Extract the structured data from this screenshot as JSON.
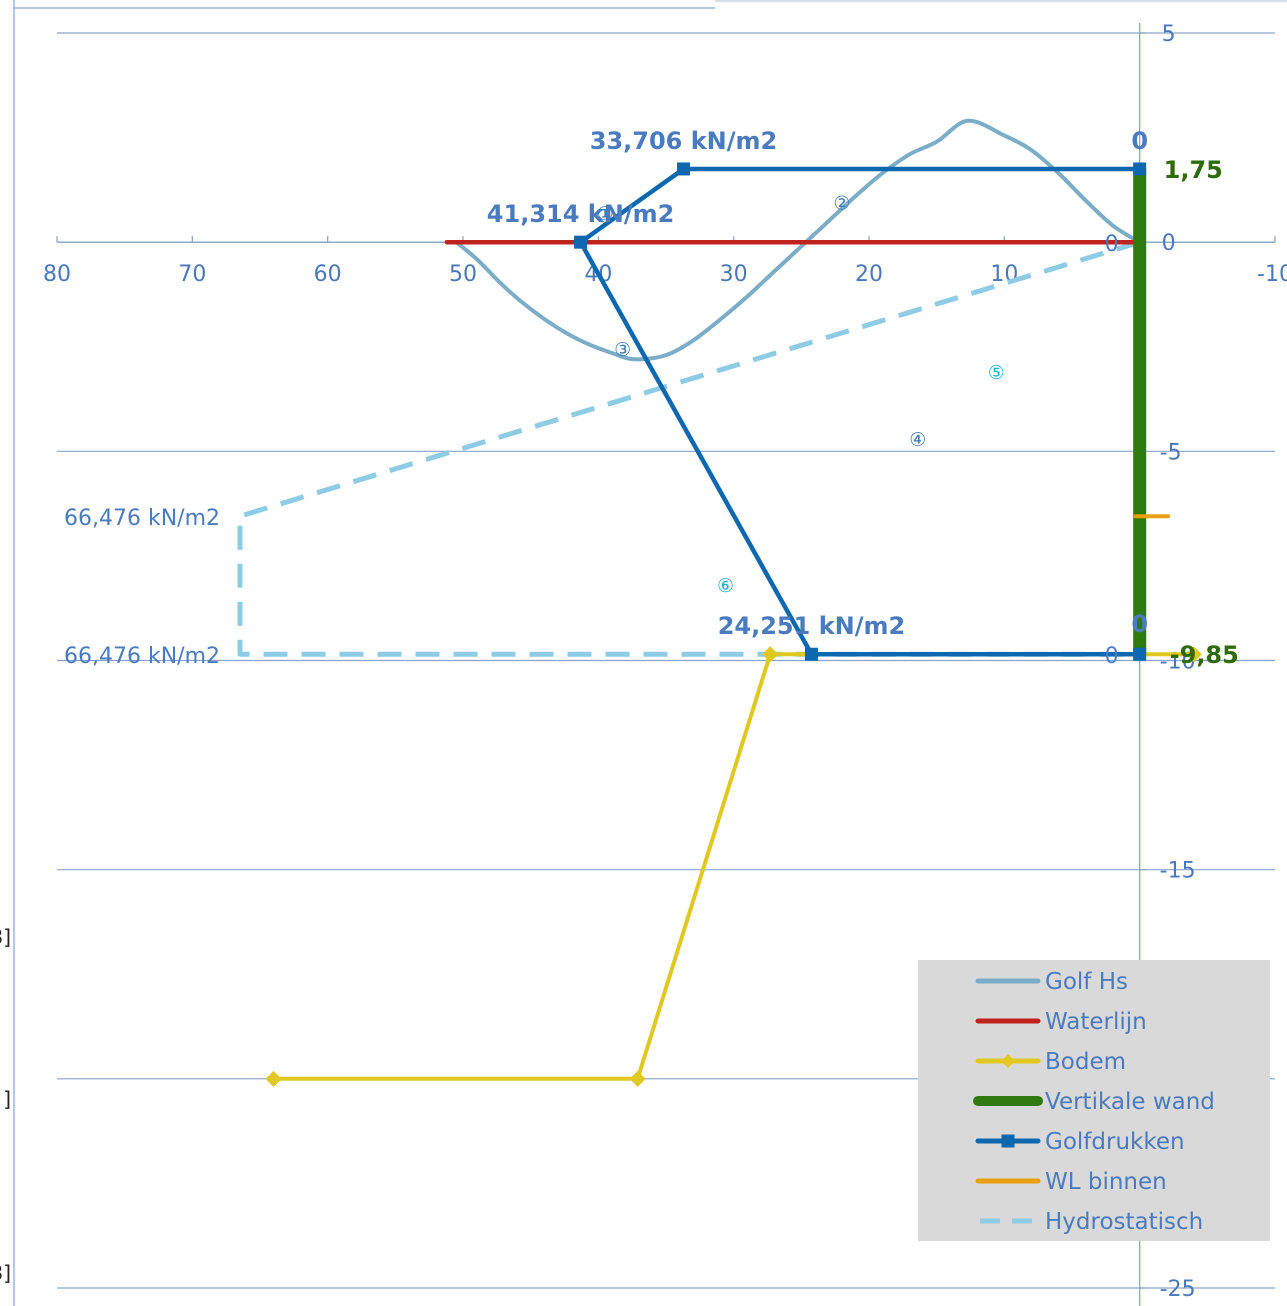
{
  "chart_data": {
    "type": "line",
    "title": "",
    "xlabel": "",
    "ylabel": "",
    "xlim": [
      80,
      -10
    ],
    "ylim": [
      -25,
      5
    ],
    "x_reversed": true,
    "grid": "horizontal",
    "x_ticks": [
      "80",
      "70",
      "60",
      "50",
      "40",
      "30",
      "20",
      "10",
      "0",
      "-10"
    ],
    "x_tick_values": [
      80,
      70,
      60,
      50,
      40,
      30,
      20,
      10,
      0,
      -10
    ],
    "y_ticks": [
      "5",
      "0",
      "-5",
      "-10",
      "-15",
      "-25"
    ],
    "y_tick_values": [
      5,
      0,
      -5,
      -10,
      -15,
      -25
    ],
    "series": [
      {
        "name": "Golf Hs",
        "color": "#7badc8",
        "style": "solid",
        "points": [
          [
            50.5,
            0
          ],
          [
            49,
            -0.4
          ],
          [
            47,
            -1.05
          ],
          [
            45,
            -1.6
          ],
          [
            43,
            -2.05
          ],
          [
            41,
            -2.4
          ],
          [
            39,
            -2.65
          ],
          [
            37.3,
            -2.8
          ],
          [
            35,
            -2.7
          ],
          [
            33,
            -2.35
          ],
          [
            31,
            -1.85
          ],
          [
            29,
            -1.3
          ],
          [
            27,
            -0.7
          ],
          [
            25,
            -0.1
          ],
          [
            23,
            0.5
          ],
          [
            21,
            1.1
          ],
          [
            19,
            1.65
          ],
          [
            17,
            2.1
          ],
          [
            15,
            2.4
          ],
          [
            12.7,
            2.9
          ],
          [
            10,
            2.55
          ],
          [
            8,
            2.2
          ],
          [
            6,
            1.65
          ],
          [
            4,
            1.0
          ],
          [
            2,
            0.4
          ],
          [
            0,
            0
          ]
        ]
      },
      {
        "name": "Waterlijn",
        "color": "#c0221d",
        "style": "solid",
        "points": [
          [
            51.2,
            0
          ],
          [
            0,
            0
          ]
        ]
      },
      {
        "name": "Bodem",
        "color": "#e0c820",
        "style": "marker-diamond",
        "points": [
          [
            64,
            -20
          ],
          [
            37.1,
            -20
          ],
          [
            27.3,
            -9.85
          ],
          [
            -4,
            -9.85
          ]
        ]
      },
      {
        "name": "Vertikale wand",
        "color": "#2e7a0e",
        "style": "thick",
        "points": [
          [
            0,
            1.75
          ],
          [
            0,
            -9.85
          ]
        ]
      },
      {
        "name": "Golfdrukken",
        "color": "#0e68b0",
        "style": "marker-square",
        "points": [
          [
            0,
            1.75
          ],
          [
            33.706,
            1.75
          ],
          [
            41.314,
            0
          ],
          [
            24.251,
            -9.85
          ],
          [
            0,
            -9.85
          ]
        ]
      },
      {
        "name": "WL binnen",
        "color": "#e8a010",
        "style": "solid",
        "points": [
          [
            0.3,
            -6.55
          ],
          [
            -2.1,
            -6.55
          ]
        ]
      },
      {
        "name": "Hydrostatisch",
        "color": "#8ecbe4",
        "style": "dashed",
        "points": [
          [
            0,
            0
          ],
          [
            66.476,
            -6.55
          ],
          [
            66.476,
            -9.85
          ],
          [
            0,
            -9.85
          ]
        ]
      }
    ],
    "annotations": [
      {
        "text": "33,706 kN/m2",
        "x": 33.706,
        "y": 1.75,
        "style": "bold"
      },
      {
        "text": "41,314 kN/m2",
        "x": 41.314,
        "y": 0,
        "style": "bold"
      },
      {
        "text": "24,251 kN/m2",
        "x": 24.251,
        "y": -9.85,
        "style": "bold"
      },
      {
        "text": "0",
        "x": 0,
        "y": 1.75,
        "style": "bold"
      },
      {
        "text": "0",
        "x": 0,
        "y": -9.85,
        "style": "bold"
      },
      {
        "text": "1,75",
        "x": 0,
        "y": 1.75,
        "style": "green"
      },
      {
        "text": "-9,85",
        "x": 0,
        "y": -9.85,
        "style": "green"
      },
      {
        "text": "0",
        "x": 0,
        "y": 0,
        "style": "plain"
      },
      {
        "text": "0",
        "x": 0,
        "y": -9.85,
        "style": "plain"
      },
      {
        "text": "66,476 kN/m2",
        "x": 66.476,
        "y": -6.55,
        "style": "plain"
      },
      {
        "text": "66,476 kN/m2",
        "x": 66.476,
        "y": -9.85,
        "style": "plain"
      }
    ],
    "markers": [
      {
        "text": "①",
        "x": 39.5,
        "y": 0.7,
        "color": "#3a7ab8"
      },
      {
        "text": "②",
        "x": 22,
        "y": 0.95,
        "color": "#3a7ab8"
      },
      {
        "text": "③",
        "x": 38.2,
        "y": -2.55,
        "color": "#3a7ab8"
      },
      {
        "text": "④",
        "x": 16.4,
        "y": -4.7,
        "color": "#3a7ab8"
      },
      {
        "text": "⑤",
        "x": 10.6,
        "y": -3.1,
        "color": "#20b0cc"
      },
      {
        "text": "⑥",
        "x": 30.6,
        "y": -8.2,
        "color": "#20b0cc"
      }
    ],
    "legend": {
      "position": "bottom-right",
      "background": "#d9d9d9",
      "entries": [
        "Golf Hs",
        "Waterlijn",
        "Bodem",
        "Vertikale wand",
        "Golfdrukken",
        "WL binnen",
        "Hydrostatisch"
      ]
    }
  },
  "page_edge_labels": [
    "3]",
    "]",
    "3]"
  ]
}
